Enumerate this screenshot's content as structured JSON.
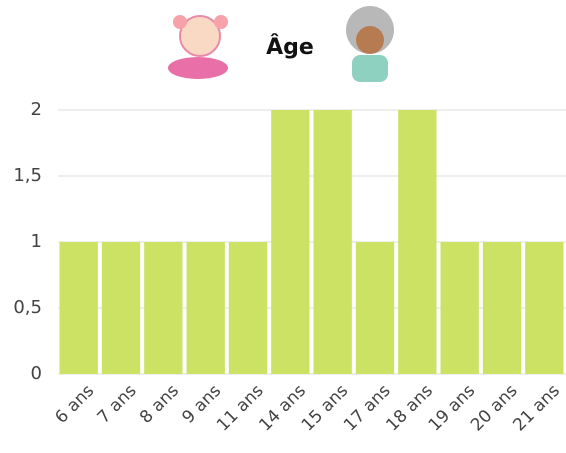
{
  "chart_data": {
    "type": "bar",
    "title": "Âge",
    "categories": [
      "6 ans",
      "7 ans",
      "8 ans",
      "9 ans",
      "11 ans",
      "14 ans",
      "15 ans",
      "17 ans",
      "18 ans",
      "19 ans",
      "20 ans",
      "21 ans"
    ],
    "values": [
      1,
      1,
      1,
      1,
      1,
      2,
      2,
      1,
      2,
      1,
      1,
      1
    ],
    "color": "#cbe265",
    "ylim": [
      0,
      2
    ],
    "yticks": [
      0,
      {
        "value": 0.5,
        "label": "0,5"
      },
      1,
      {
        "value": 1.5,
        "label": "1,5"
      },
      2
    ],
    "grid": true
  }
}
